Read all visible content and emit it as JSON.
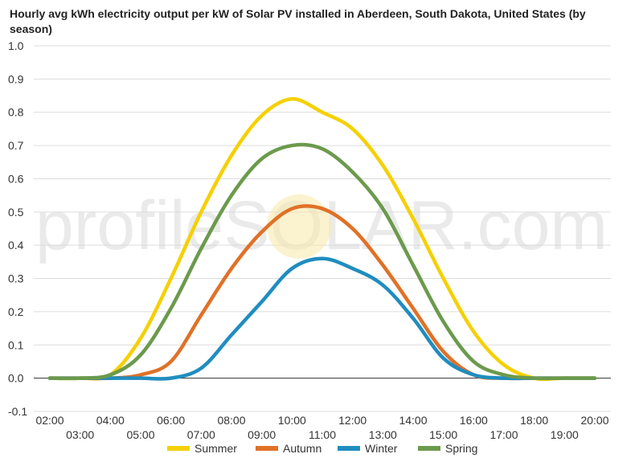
{
  "chart_data": {
    "type": "line",
    "title": "Hourly avg kWh electricity output per kW of Solar PV installed in Aberdeen, South Dakota, United States (by season)",
    "xlabel": "",
    "ylabel": "",
    "x": [
      "02:00",
      "03:00",
      "04:00",
      "05:00",
      "06:00",
      "07:00",
      "08:00",
      "09:00",
      "10:00",
      "11:00",
      "12:00",
      "13:00",
      "14:00",
      "15:00",
      "16:00",
      "17:00",
      "18:00",
      "19:00",
      "20:00"
    ],
    "ylim": [
      -0.1,
      1.0
    ],
    "yticks": [
      "1.0",
      "0.9",
      "0.8",
      "0.7",
      "0.6",
      "0.5",
      "0.4",
      "0.3",
      "0.2",
      "0.1",
      "0.0",
      "-0.1"
    ],
    "grid": true,
    "legend_position": "bottom",
    "series": [
      {
        "name": "Summer",
        "color": "#f5d000",
        "values": [
          0.0,
          0.0,
          0.01,
          0.12,
          0.3,
          0.5,
          0.67,
          0.79,
          0.84,
          0.8,
          0.75,
          0.64,
          0.48,
          0.3,
          0.14,
          0.04,
          0.0,
          0.0,
          0.0
        ]
      },
      {
        "name": "Autumn",
        "color": "#e07127",
        "values": [
          0.0,
          0.0,
          0.0,
          0.01,
          0.05,
          0.19,
          0.33,
          0.44,
          0.51,
          0.51,
          0.45,
          0.34,
          0.21,
          0.08,
          0.01,
          0.0,
          0.0,
          0.0,
          0.0
        ]
      },
      {
        "name": "Winter",
        "color": "#1f8dc0",
        "values": [
          0.0,
          0.0,
          0.0,
          0.0,
          0.0,
          0.03,
          0.13,
          0.23,
          0.33,
          0.36,
          0.33,
          0.28,
          0.18,
          0.06,
          0.01,
          0.0,
          0.0,
          0.0,
          0.0
        ]
      },
      {
        "name": "Spring",
        "color": "#6b9a4c",
        "values": [
          0.0,
          0.0,
          0.01,
          0.07,
          0.21,
          0.39,
          0.55,
          0.66,
          0.7,
          0.69,
          0.62,
          0.51,
          0.34,
          0.17,
          0.05,
          0.01,
          0.0,
          0.0,
          0.0
        ]
      }
    ],
    "watermark": "profileSOLAR.com"
  }
}
